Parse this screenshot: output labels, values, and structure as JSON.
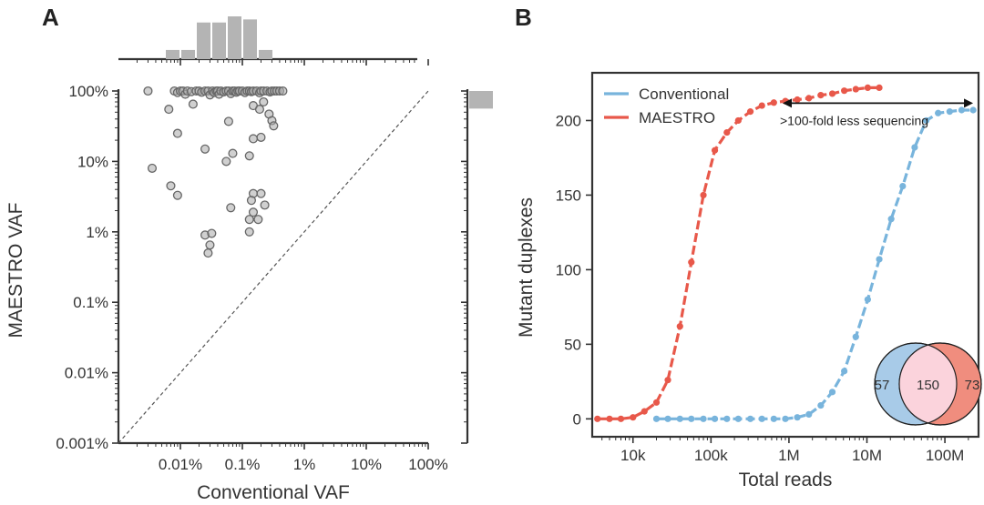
{
  "panels": {
    "a_label": "A",
    "b_label": "B"
  },
  "chart_data": [
    {
      "type": "scatter",
      "panel": "A",
      "xlabel": "Conventional VAF",
      "ylabel": "MAESTRO VAF",
      "xscale": "log",
      "yscale": "log",
      "xlim": [
        0.001,
        100
      ],
      "ylim": [
        0.001,
        100
      ],
      "x_ticks": [
        {
          "value": 0.01,
          "label": "0.01%"
        },
        {
          "value": 0.1,
          "label": "0.1%"
        },
        {
          "value": 1,
          "label": "1%"
        },
        {
          "value": 10,
          "label": "10%"
        },
        {
          "value": 100,
          "label": "100%"
        }
      ],
      "y_ticks": [
        {
          "value": 0.001,
          "label": "0.001%"
        },
        {
          "value": 0.01,
          "label": "0.01%"
        },
        {
          "value": 0.1,
          "label": "0.1%"
        },
        {
          "value": 1,
          "label": "1%"
        },
        {
          "value": 10,
          "label": "10%"
        },
        {
          "value": 100,
          "label": "100%"
        }
      ],
      "diagonal": "y = x (dashed)",
      "x_marginal_histogram": {
        "bin_edges_log10": [
          -2.25,
          -2.0,
          -1.75,
          -1.5,
          -1.25,
          -1.0,
          -0.75,
          -0.5
        ],
        "counts": [
          3,
          3,
          12,
          12,
          14,
          13,
          3
        ]
      },
      "y_marginal_histogram": {
        "bin_log10": [
          1.75,
          2.0
        ],
        "count": 1
      },
      "points": [
        {
          "x": 0.003,
          "y": 100
        },
        {
          "x": 0.008,
          "y": 100
        },
        {
          "x": 0.009,
          "y": 95
        },
        {
          "x": 0.01,
          "y": 100
        },
        {
          "x": 0.011,
          "y": 100
        },
        {
          "x": 0.012,
          "y": 90
        },
        {
          "x": 0.013,
          "y": 100
        },
        {
          "x": 0.015,
          "y": 98
        },
        {
          "x": 0.018,
          "y": 100
        },
        {
          "x": 0.02,
          "y": 100
        },
        {
          "x": 0.022,
          "y": 96
        },
        {
          "x": 0.025,
          "y": 100
        },
        {
          "x": 0.028,
          "y": 100
        },
        {
          "x": 0.03,
          "y": 88
        },
        {
          "x": 0.033,
          "y": 100
        },
        {
          "x": 0.035,
          "y": 95
        },
        {
          "x": 0.038,
          "y": 100
        },
        {
          "x": 0.04,
          "y": 100
        },
        {
          "x": 0.042,
          "y": 90
        },
        {
          "x": 0.045,
          "y": 100
        },
        {
          "x": 0.05,
          "y": 97
        },
        {
          "x": 0.055,
          "y": 100
        },
        {
          "x": 0.06,
          "y": 100
        },
        {
          "x": 0.065,
          "y": 92
        },
        {
          "x": 0.07,
          "y": 100
        },
        {
          "x": 0.075,
          "y": 100
        },
        {
          "x": 0.08,
          "y": 96
        },
        {
          "x": 0.085,
          "y": 100
        },
        {
          "x": 0.09,
          "y": 100
        },
        {
          "x": 0.1,
          "y": 100
        },
        {
          "x": 0.11,
          "y": 95
        },
        {
          "x": 0.12,
          "y": 100
        },
        {
          "x": 0.13,
          "y": 100
        },
        {
          "x": 0.14,
          "y": 98
        },
        {
          "x": 0.15,
          "y": 100
        },
        {
          "x": 0.17,
          "y": 100
        },
        {
          "x": 0.19,
          "y": 94
        },
        {
          "x": 0.2,
          "y": 100
        },
        {
          "x": 0.22,
          "y": 100
        },
        {
          "x": 0.25,
          "y": 100
        },
        {
          "x": 0.28,
          "y": 97
        },
        {
          "x": 0.3,
          "y": 100
        },
        {
          "x": 0.33,
          "y": 100
        },
        {
          "x": 0.36,
          "y": 100
        },
        {
          "x": 0.4,
          "y": 100
        },
        {
          "x": 0.45,
          "y": 100
        },
        {
          "x": 0.0065,
          "y": 55
        },
        {
          "x": 0.016,
          "y": 65
        },
        {
          "x": 0.15,
          "y": 62
        },
        {
          "x": 0.19,
          "y": 55
        },
        {
          "x": 0.22,
          "y": 70
        },
        {
          "x": 0.27,
          "y": 47
        },
        {
          "x": 0.3,
          "y": 38
        },
        {
          "x": 0.32,
          "y": 32
        },
        {
          "x": 0.06,
          "y": 37
        },
        {
          "x": 0.009,
          "y": 25
        },
        {
          "x": 0.15,
          "y": 21
        },
        {
          "x": 0.2,
          "y": 22
        },
        {
          "x": 0.025,
          "y": 15
        },
        {
          "x": 0.07,
          "y": 13
        },
        {
          "x": 0.055,
          "y": 10
        },
        {
          "x": 0.13,
          "y": 12
        },
        {
          "x": 0.0035,
          "y": 8
        },
        {
          "x": 0.007,
          "y": 4.5
        },
        {
          "x": 0.009,
          "y": 3.3
        },
        {
          "x": 0.15,
          "y": 3.5
        },
        {
          "x": 0.2,
          "y": 3.5
        },
        {
          "x": 0.14,
          "y": 2.8
        },
        {
          "x": 0.23,
          "y": 2.4
        },
        {
          "x": 0.065,
          "y": 2.2
        },
        {
          "x": 0.15,
          "y": 1.9
        },
        {
          "x": 0.13,
          "y": 1.5
        },
        {
          "x": 0.18,
          "y": 1.5
        },
        {
          "x": 0.13,
          "y": 1.0
        },
        {
          "x": 0.025,
          "y": 0.9
        },
        {
          "x": 0.032,
          "y": 0.95
        },
        {
          "x": 0.03,
          "y": 0.65
        },
        {
          "x": 0.028,
          "y": 0.5
        }
      ]
    },
    {
      "type": "line",
      "panel": "B",
      "xlabel": "Total reads",
      "ylabel": "Mutant duplexes",
      "xscale": "log",
      "xlim": [
        3000,
        270000000
      ],
      "ylim": [
        -12,
        232
      ],
      "x_ticks": [
        {
          "value": 10000,
          "label": "10k"
        },
        {
          "value": 100000,
          "label": "100k"
        },
        {
          "value": 1000000,
          "label": "1M"
        },
        {
          "value": 10000000,
          "label": "10M"
        },
        {
          "value": 100000000,
          "label": "100M"
        }
      ],
      "y_ticks": [
        {
          "value": 0,
          "label": "0"
        },
        {
          "value": 50,
          "label": "50"
        },
        {
          "value": 100,
          "label": "100"
        },
        {
          "value": 150,
          "label": "150"
        },
        {
          "value": 200,
          "label": "200"
        }
      ],
      "series": [
        {
          "name": "Conventional",
          "color": "#78b4dc",
          "x": [
            20000,
            28000,
            40000,
            56000,
            80000,
            112000,
            160000,
            224000,
            320000,
            450000,
            640000,
            900000,
            1280000,
            1800000,
            2560000,
            3600000,
            5120000,
            7200000,
            10240000,
            14400000,
            20480000,
            28800000,
            40960000,
            57600000,
            81920000,
            115200000,
            163840000,
            230400000
          ],
          "y": [
            0,
            0,
            0,
            0,
            0,
            0,
            0,
            0,
            0,
            0,
            0,
            0,
            1,
            3,
            9,
            18,
            32,
            55,
            80,
            107,
            134,
            156,
            182,
            200,
            205,
            206,
            207,
            207
          ]
        },
        {
          "name": "MAESTRO",
          "color": "#e8584a",
          "x": [
            3500,
            5000,
            7000,
            10000,
            14000,
            20000,
            28000,
            40000,
            56000,
            80000,
            112000,
            160000,
            224000,
            320000,
            450000,
            640000,
            900000,
            1280000,
            1800000,
            2560000,
            3600000,
            5120000,
            7200000,
            10240000,
            14400000
          ],
          "y": [
            0,
            0,
            0,
            1,
            5,
            11,
            26,
            62,
            105,
            150,
            180,
            192,
            200,
            206,
            210,
            212,
            213,
            214,
            215,
            217,
            218,
            220,
            221,
            222,
            222
          ]
        }
      ],
      "legend": {
        "position": "top-left",
        "entries": [
          "Conventional",
          "MAESTRO"
        ]
      },
      "annotation": {
        "text": ">100-fold less sequencing",
        "arrow_from_x": 830000,
        "arrow_to_x": 230000000,
        "arrow_y": 208
      },
      "venn": {
        "left_only": "57",
        "overlap": "150",
        "right_only": "73",
        "left_color": "#a8cbe8",
        "right_color": "#f08d7e",
        "overlap_color": "#fbd3dc"
      }
    }
  ]
}
